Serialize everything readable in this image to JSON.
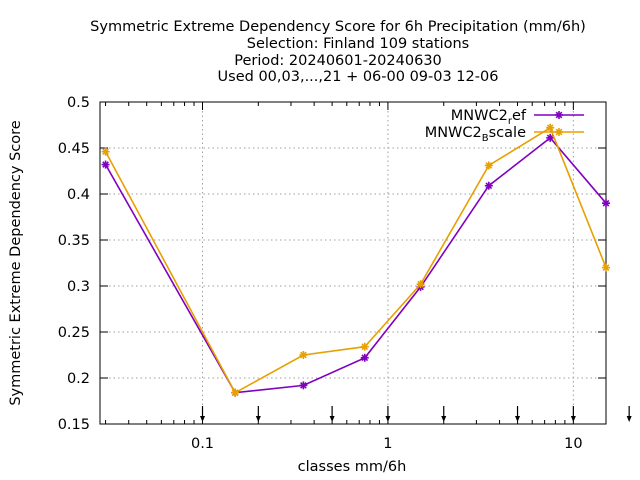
{
  "chart_data": {
    "type": "line",
    "title_lines": [
      "Symmetric Extreme Dependency Score  for 6h Precipitation (mm/6h)",
      "Selection: Finland    109 stations",
      "Period: 20240601-20240630",
      "Used 00,03,...,21 + 06-00 09-03 12-06"
    ],
    "xlabel": "classes mm/6h",
    "ylabel": "Symmetric Extreme Dependency Score",
    "x_scale": "log",
    "xlim": [
      0.028,
      15
    ],
    "ylim": [
      0.15,
      0.5
    ],
    "xticks": [
      {
        "value": 0.1,
        "label": "0.1"
      },
      {
        "value": 1,
        "label": "1"
      },
      {
        "value": 10,
        "label": "10"
      }
    ],
    "yticks": [
      {
        "value": 0.15,
        "label": "0.15"
      },
      {
        "value": 0.2,
        "label": "0.2"
      },
      {
        "value": 0.25,
        "label": "0.25"
      },
      {
        "value": 0.3,
        "label": "0.3"
      },
      {
        "value": 0.35,
        "label": "0.35"
      },
      {
        "value": 0.4,
        "label": "0.4"
      },
      {
        "value": 0.45,
        "label": "0.45"
      },
      {
        "value": 0.5,
        "label": "0.5"
      }
    ],
    "grid": true,
    "legend_position": "top-right",
    "class_markers": [
      0.1,
      0.2,
      0.5,
      1,
      2,
      5,
      10,
      20
    ],
    "series": [
      {
        "name": "MNWC2",
        "name_subscript": "r",
        "name_suffix": "ef",
        "color": "#8000c0",
        "marker": "star",
        "x": [
          0.03,
          0.15,
          0.35,
          0.75,
          1.5,
          3.5,
          7.5,
          15
        ],
        "y": [
          0.432,
          0.184,
          0.192,
          0.222,
          0.299,
          0.409,
          0.461,
          0.39
        ]
      },
      {
        "name": "MNWC2",
        "name_subscript": "B",
        "name_suffix": "scale",
        "color": "#e8a000",
        "marker": "star",
        "x": [
          0.03,
          0.15,
          0.35,
          0.75,
          1.5,
          3.5,
          7.5,
          15
        ],
        "y": [
          0.446,
          0.184,
          0.225,
          0.234,
          0.302,
          0.431,
          0.472,
          0.32
        ]
      }
    ]
  }
}
